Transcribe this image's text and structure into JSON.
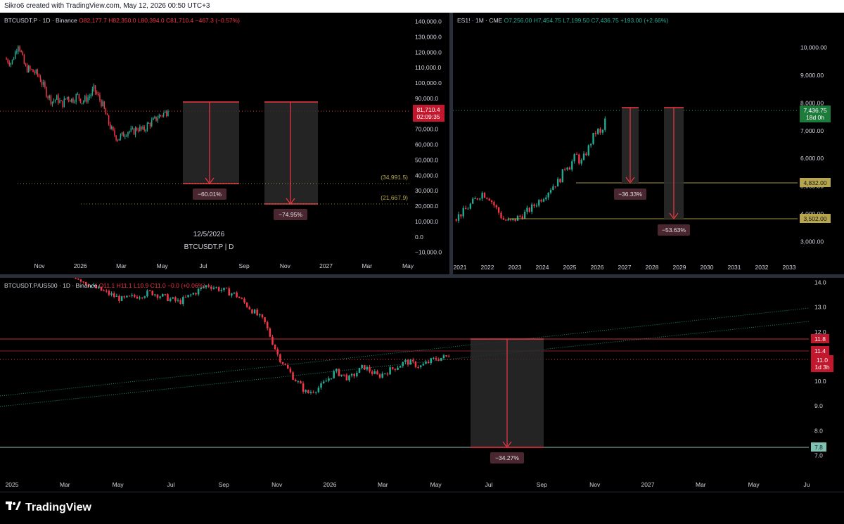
{
  "header": {
    "text": "Sikro6 created with TradingView.com, May 12, 2026 00:50 UTC+3"
  },
  "footer": {
    "brand": "TradingView"
  },
  "panes": {
    "btc": {
      "symbol": "BTCUSDT.P · 1D · Binance",
      "open": "O82,177.7",
      "high": "H82,350.0",
      "low": "L80,394.0",
      "close": "C81,710.4",
      "change": "−467.3 (−0.57%)",
      "price_tag": "81,710.4",
      "countdown": "02:09:35",
      "level_1": "(34,991.5)",
      "level_2": "(21,667.9)",
      "drop_1": "−60.01%",
      "drop_2": "−74.95%",
      "watermark_date": "12/5/2026",
      "watermark_symbol": "BTCUSDT.P | D"
    },
    "es": {
      "symbol": "ES1! · 1M · CME",
      "open": "O7,256.00",
      "high": "H7,454.75",
      "low": "L7,199.50",
      "close": "C7,436.75",
      "change": "+193.00 (+2.66%)",
      "price_tag": "7,436.75",
      "countdown": "18d 0h",
      "level_1_tag": "4,832.00",
      "level_2_tag": "3,502.00",
      "drop_1": "−36.33%",
      "drop_2": "−53.63%"
    },
    "ratio": {
      "symbol": "BTCUSDT.P/US500 · 1D · Binance",
      "open": "O11.1",
      "high": "H11.1",
      "low": "L10.9",
      "close": "C11.0",
      "change": "−0.0 (+0.06%)",
      "tag_top": "11.8",
      "tag_mid": "11.4",
      "tag_price": "11.0",
      "tag_countdown": "1d 3h",
      "tag_low": "7.8",
      "drop": "−34.27%"
    }
  },
  "colors": {
    "up": "#22ab94",
    "down": "#f23645",
    "grid": "#1e222d",
    "text": "#d1d4dc",
    "box": "#2a2a2a"
  },
  "chart_data": [
    {
      "type": "candlestick",
      "series": [
        {
          "name": "BTCUSDT.P"
        }
      ],
      "x_ticks": [
        "Nov",
        "2026",
        "Mar",
        "May",
        "Jul",
        "Sep",
        "Nov",
        "2027",
        "Mar",
        "May"
      ],
      "y_ticks": [
        "140,000.0",
        "130,000.0",
        "120,000.0",
        "110,000.0",
        "100,000.0",
        "90,000.0",
        "80,000.0",
        "70,000.0",
        "60,000.0",
        "50,000.0",
        "40,000.0",
        "30,000.0",
        "20,000.0",
        "10,000.0",
        "0.0",
        "−10,000.0"
      ],
      "ylim": [
        -12000,
        143000
      ],
      "last": 81710.4,
      "path": [
        [
          0,
          116000
        ],
        [
          4,
          113000
        ],
        [
          8,
          126000
        ],
        [
          12,
          110000
        ],
        [
          16,
          108000
        ],
        [
          20,
          105000
        ],
        [
          25,
          93000
        ],
        [
          28,
          88000
        ],
        [
          31,
          90000
        ],
        [
          34,
          86000
        ],
        [
          37,
          91000
        ],
        [
          40,
          89000
        ],
        [
          43,
          92000
        ],
        [
          46,
          88000
        ],
        [
          50,
          91000
        ],
        [
          53,
          96000
        ],
        [
          55,
          92000
        ],
        [
          58,
          86000
        ],
        [
          61,
          76000
        ],
        [
          64,
          68000
        ],
        [
          67,
          64000
        ],
        [
          70,
          66000
        ],
        [
          73,
          69000
        ],
        [
          76,
          68000
        ],
        [
          79,
          71000
        ],
        [
          82,
          69000
        ],
        [
          85,
          73000
        ],
        [
          88,
          75000
        ],
        [
          91,
          78000
        ],
        [
          94,
          80000
        ],
        [
          97,
          81700
        ]
      ],
      "projections": [
        {
          "level": 34991.5,
          "change": "−60.01%"
        },
        {
          "level": 21667.9,
          "change": "−74.95%"
        }
      ]
    },
    {
      "type": "candlestick",
      "series": [
        {
          "name": "ES1!"
        }
      ],
      "x_ticks": [
        "2021",
        "2022",
        "2023",
        "2024",
        "2025",
        "2026",
        "2027",
        "2028",
        "2029",
        "2030",
        "2031",
        "2032",
        "2033"
      ],
      "y_ticks": [
        "10,000.00",
        "9,000.00",
        "8,000.00",
        "7,000.00",
        "6,000.00",
        "5,000.00",
        "4,000.00",
        "3,000.00"
      ],
      "ylim": [
        2500,
        10600
      ],
      "last": 7436.75,
      "path": [
        [
          0,
          3800
        ],
        [
          3,
          4100
        ],
        [
          6,
          4500
        ],
        [
          8,
          4750
        ],
        [
          10,
          4600
        ],
        [
          12,
          4200
        ],
        [
          14,
          3800
        ],
        [
          16,
          3700
        ],
        [
          18,
          3850
        ],
        [
          20,
          4000
        ],
        [
          22,
          4200
        ],
        [
          24,
          4450
        ],
        [
          26,
          4700
        ],
        [
          28,
          5000
        ],
        [
          30,
          5200
        ],
        [
          31,
          5500
        ],
        [
          32,
          5800
        ],
        [
          33,
          5700
        ],
        [
          34,
          6000
        ],
        [
          35,
          6100
        ],
        [
          36,
          5800
        ],
        [
          37,
          6050
        ],
        [
          38,
          6300
        ],
        [
          39,
          6600
        ],
        [
          40,
          6900
        ],
        [
          41,
          7000
        ],
        [
          42,
          6800
        ],
        [
          43,
          7437
        ]
      ],
      "projections": [
        {
          "level": 4832.0,
          "change": "−36.33%"
        },
        {
          "level": 3502.0,
          "change": "−53.63%"
        }
      ]
    },
    {
      "type": "candlestick",
      "series": [
        {
          "name": "BTCUSDT.P/US500"
        }
      ],
      "x_ticks": [
        "2025",
        "Mar",
        "May",
        "Jul",
        "Sep",
        "Nov",
        "2026",
        "Mar",
        "May",
        "Jul",
        "Sep",
        "Nov",
        "2027",
        "Mar",
        "May",
        "Ju"
      ],
      "y_ticks": [
        "14.0",
        "13.0",
        "12.0",
        "11.0",
        "10.0",
        "9.0",
        "8.0",
        "7.0"
      ],
      "ylim": [
        6.5,
        14.1
      ],
      "last": 11.0,
      "path": [
        [
          0,
          14.5
        ],
        [
          2,
          13.8
        ],
        [
          4,
          13.3
        ],
        [
          6,
          13.6
        ],
        [
          8,
          13.2
        ],
        [
          10,
          13.9
        ],
        [
          12,
          13.5
        ],
        [
          14,
          12.4
        ],
        [
          15,
          11.0
        ],
        [
          16,
          10.2
        ],
        [
          17,
          9.5
        ],
        [
          18,
          9.8
        ],
        [
          19,
          10.4
        ],
        [
          20,
          10.1
        ],
        [
          21,
          10.6
        ],
        [
          22,
          10.2
        ],
        [
          23,
          10.5
        ],
        [
          24,
          10.8
        ],
        [
          25,
          10.6
        ],
        [
          26,
          10.9
        ],
        [
          27,
          11.0
        ]
      ],
      "projections": [
        {
          "level": 7.8,
          "change": "−34.27%"
        }
      ]
    }
  ]
}
